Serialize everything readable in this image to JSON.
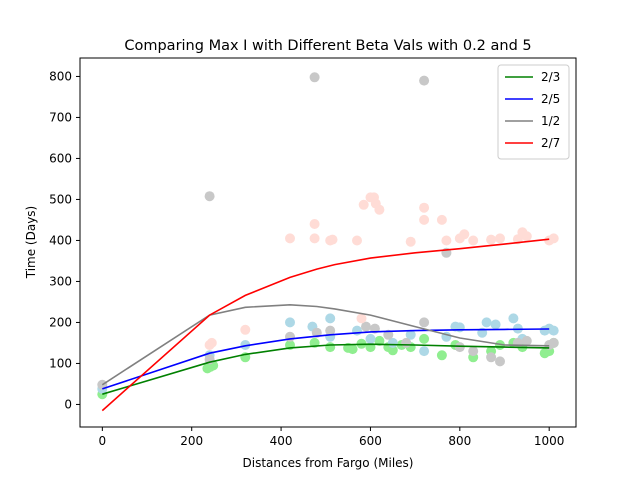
{
  "chart_data": {
    "type": "line",
    "title": "Comparing Max I with Different Beta Vals with 0.2 and 5",
    "xlabel": "Distances from Fargo (Miles)",
    "ylabel": "Time (Days)",
    "xlim": [
      -50,
      1060
    ],
    "ylim": [
      -55,
      845
    ],
    "xticks": [
      0,
      200,
      400,
      600,
      800,
      1000
    ],
    "yticks": [
      0,
      100,
      200,
      300,
      400,
      500,
      600,
      700,
      800
    ],
    "legend_position": "top-right",
    "grid": false,
    "series": [
      {
        "name": "2/3",
        "color": "#008000",
        "x": [
          0,
          240,
          320,
          420,
          510,
          600,
          700,
          800,
          900,
          1000
        ],
        "y": [
          25,
          103,
          122,
          138,
          145,
          147,
          145,
          142,
          140,
          138
        ]
      },
      {
        "name": "2/5",
        "color": "#0000ff",
        "x": [
          0,
          240,
          320,
          420,
          510,
          600,
          700,
          800,
          900,
          1000
        ],
        "y": [
          38,
          125,
          143,
          160,
          170,
          177,
          180,
          182,
          183,
          184
        ]
      },
      {
        "name": "1/2",
        "color": "#808080",
        "x": [
          0,
          240,
          320,
          420,
          480,
          520,
          600,
          700,
          800,
          900,
          1000
        ],
        "y": [
          48,
          218,
          237,
          243,
          239,
          233,
          218,
          190,
          162,
          145,
          143
        ]
      },
      {
        "name": "2/7",
        "color": "#ff0000",
        "x": [
          0,
          240,
          320,
          420,
          480,
          520,
          600,
          700,
          800,
          900,
          1000
        ],
        "y": [
          -15,
          218,
          266,
          310,
          330,
          341,
          357,
          370,
          380,
          391,
          403
        ]
      }
    ],
    "scatter": [
      {
        "color": "#90ee90",
        "points": [
          [
            0,
            25
          ],
          [
            235,
            88
          ],
          [
            242,
            92
          ],
          [
            248,
            95
          ],
          [
            320,
            115
          ],
          [
            420,
            145
          ],
          [
            475,
            150
          ],
          [
            510,
            140
          ],
          [
            550,
            138
          ],
          [
            560,
            135
          ],
          [
            580,
            148
          ],
          [
            600,
            140
          ],
          [
            620,
            155
          ],
          [
            640,
            140
          ],
          [
            650,
            132
          ],
          [
            670,
            145
          ],
          [
            690,
            140
          ],
          [
            720,
            160
          ],
          [
            760,
            120
          ],
          [
            790,
            145
          ],
          [
            830,
            115
          ],
          [
            870,
            130
          ],
          [
            890,
            145
          ],
          [
            920,
            150
          ],
          [
            940,
            140
          ],
          [
            990,
            125
          ],
          [
            1000,
            130
          ],
          [
            1010,
            150
          ]
        ]
      },
      {
        "color": "#add8e6",
        "points": [
          [
            0,
            38
          ],
          [
            240,
            120
          ],
          [
            320,
            145
          ],
          [
            420,
            200
          ],
          [
            470,
            190
          ],
          [
            510,
            210
          ],
          [
            510,
            165
          ],
          [
            570,
            180
          ],
          [
            600,
            160
          ],
          [
            650,
            150
          ],
          [
            690,
            170
          ],
          [
            720,
            130
          ],
          [
            770,
            165
          ],
          [
            790,
            190
          ],
          [
            800,
            188
          ],
          [
            850,
            175
          ],
          [
            860,
            200
          ],
          [
            880,
            195
          ],
          [
            920,
            210
          ],
          [
            930,
            185
          ],
          [
            940,
            160
          ],
          [
            990,
            180
          ],
          [
            1000,
            185
          ],
          [
            1010,
            180
          ]
        ]
      },
      {
        "color": "#c8c8c8",
        "points": [
          [
            240,
            508
          ],
          [
            475,
            798
          ],
          [
            720,
            790
          ],
          [
            0,
            48
          ],
          [
            240,
            110
          ],
          [
            420,
            165
          ],
          [
            480,
            175
          ],
          [
            510,
            180
          ],
          [
            590,
            190
          ],
          [
            610,
            185
          ],
          [
            640,
            170
          ],
          [
            680,
            150
          ],
          [
            720,
            200
          ],
          [
            770,
            370
          ],
          [
            800,
            140
          ],
          [
            830,
            130
          ],
          [
            870,
            115
          ],
          [
            890,
            105
          ],
          [
            930,
            150
          ],
          [
            950,
            155
          ],
          [
            1000,
            145
          ],
          [
            1010,
            150
          ]
        ]
      },
      {
        "color": "#ffdcd6",
        "points": [
          [
            240,
            145
          ],
          [
            245,
            150
          ],
          [
            320,
            182
          ],
          [
            420,
            405
          ],
          [
            475,
            440
          ],
          [
            475,
            405
          ],
          [
            510,
            400
          ],
          [
            515,
            402
          ],
          [
            570,
            400
          ],
          [
            580,
            210
          ],
          [
            585,
            487
          ],
          [
            600,
            505
          ],
          [
            608,
            505
          ],
          [
            612,
            490
          ],
          [
            620,
            475
          ],
          [
            690,
            397
          ],
          [
            720,
            480
          ],
          [
            720,
            450
          ],
          [
            760,
            450
          ],
          [
            770,
            400
          ],
          [
            800,
            405
          ],
          [
            810,
            415
          ],
          [
            830,
            400
          ],
          [
            870,
            402
          ],
          [
            890,
            405
          ],
          [
            930,
            403
          ],
          [
            940,
            420
          ],
          [
            950,
            410
          ],
          [
            1000,
            400
          ],
          [
            1010,
            405
          ]
        ]
      }
    ]
  }
}
